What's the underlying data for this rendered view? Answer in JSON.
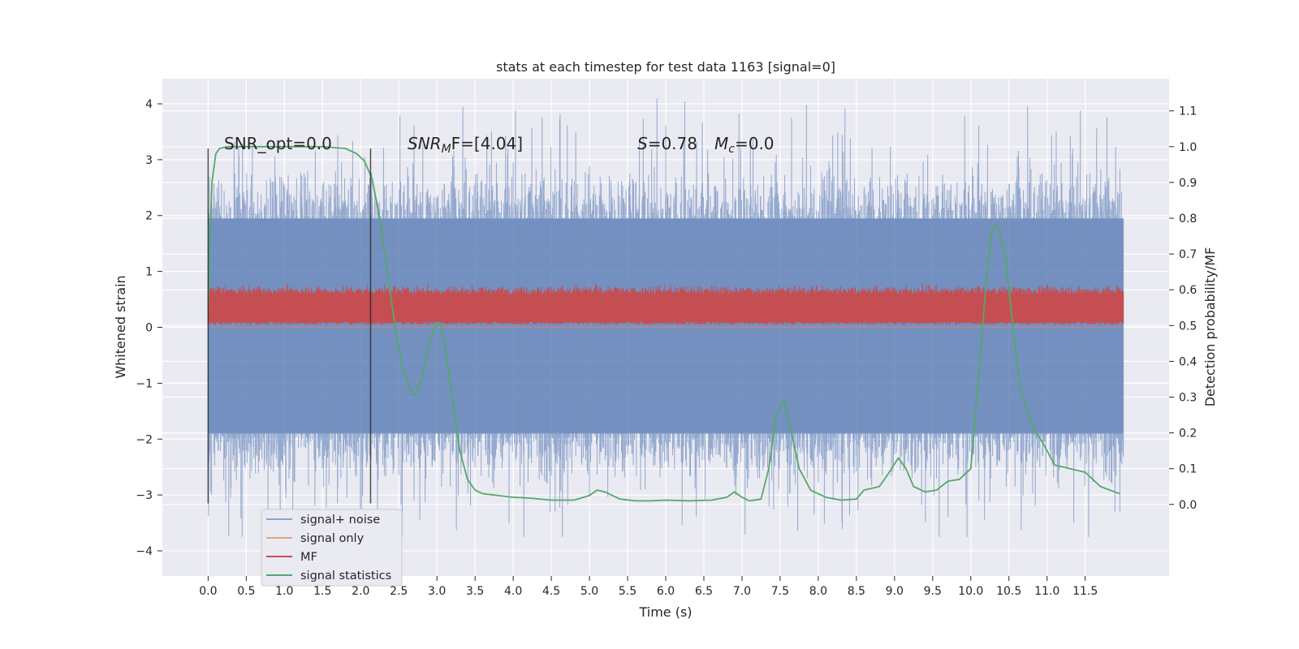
{
  "chart_data": {
    "type": "line",
    "title": "stats at each timestep for test data 1163 [signal=0]",
    "xlabel": "Time (s)",
    "ylabel_left": "Whitened strain",
    "ylabel_right": "Detection probability/MF",
    "xlim": [
      -0.6,
      12.6
    ],
    "ylim_left": [
      -4.45,
      4.45
    ],
    "ylim_right": [
      -0.2,
      1.19
    ],
    "grid": true,
    "xticks": [
      0.0,
      0.5,
      1.0,
      1.5,
      2.0,
      2.5,
      3.0,
      3.5,
      4.0,
      4.5,
      5.0,
      5.5,
      6.0,
      6.5,
      7.0,
      7.5,
      8.0,
      8.5,
      9.0,
      9.5,
      10.0,
      10.5,
      11.0,
      11.5
    ],
    "xtick_labels": [
      "0.0",
      "0.5",
      "1.0",
      "1.5",
      "2.0",
      "2.5",
      "3.0",
      "3.5",
      "4.0",
      "4.5",
      "5.0",
      "5.5",
      "6.0",
      "6.5",
      "7.0",
      "7.5",
      "8.0",
      "8.5",
      "9.0",
      "9.5",
      "10.0",
      "10.5",
      "11.0",
      "11.5"
    ],
    "yticks_left": [
      -4,
      -3,
      -2,
      -1,
      0,
      1,
      2,
      3,
      4
    ],
    "ytick_labels_left": [
      "−4",
      "−3",
      "−2",
      "−1",
      "0",
      "1",
      "2",
      "3",
      "4"
    ],
    "yticks_right": [
      0.0,
      0.1,
      0.2,
      0.3,
      0.4,
      0.5,
      0.6,
      0.7,
      0.8,
      0.9,
      1.0,
      1.1
    ],
    "ytick_labels_right": [
      "0.0",
      "0.1",
      "0.2",
      "0.3",
      "0.4",
      "0.5",
      "0.6",
      "0.7",
      "0.8",
      "0.9",
      "1.0",
      "1.1"
    ],
    "annotations": {
      "snr_opt": "SNR_opt=0.0",
      "snr_mf_main": "SNR",
      "snr_mf_sub": "M",
      "snr_mf_rest": "F=[4.04]",
      "s_main": "S",
      "s_value": "=0.78",
      "mc_main": "M",
      "mc_sub": "c",
      "mc_value": "=0.0"
    },
    "vlines": [
      {
        "x": 0.0,
        "y_range": [
          -3.15,
          3.2
        ]
      },
      {
        "x": 2.13,
        "y_range": [
          -3.15,
          3.2
        ]
      }
    ],
    "legend": {
      "placement": "lower-left",
      "entries": [
        "signal+ noise",
        "signal only",
        "MF",
        "signal statistics"
      ]
    },
    "series": [
      {
        "name": "signal+ noise",
        "axis": "left",
        "color": "#4c72b0",
        "x_range": [
          0.0,
          12.0
        ],
        "core_band": [
          -1.9,
          1.95
        ],
        "peak_range": [
          -3.75,
          4.1
        ],
        "description_of_shape": "dense white noise"
      },
      {
        "name": "signal only",
        "axis": "left",
        "color": "#dd8452",
        "x": [
          0.0,
          12.0
        ],
        "values": [
          0.0,
          0.0
        ]
      },
      {
        "name": "MF",
        "axis": "left",
        "color": "#c44e52",
        "x_range": [
          0.0,
          12.0
        ],
        "band": [
          0.05,
          0.65
        ],
        "peak_max": 0.9
      },
      {
        "name": "signal statistics",
        "axis": "right",
        "color": "#55a868",
        "x": [
          0.0,
          0.05,
          0.1,
          0.15,
          0.25,
          0.5,
          1.0,
          1.5,
          1.8,
          1.95,
          2.05,
          2.15,
          2.25,
          2.35,
          2.45,
          2.55,
          2.65,
          2.72,
          2.8,
          2.9,
          3.0,
          3.05,
          3.1,
          3.2,
          3.3,
          3.4,
          3.5,
          3.6,
          3.8,
          4.0,
          4.2,
          4.5,
          4.8,
          5.0,
          5.1,
          5.2,
          5.4,
          5.6,
          5.8,
          6.0,
          6.3,
          6.6,
          6.8,
          6.9,
          7.0,
          7.1,
          7.25,
          7.35,
          7.45,
          7.55,
          7.65,
          7.75,
          7.9,
          8.1,
          8.3,
          8.5,
          8.6,
          8.7,
          8.8,
          8.9,
          9.05,
          9.15,
          9.25,
          9.4,
          9.55,
          9.7,
          9.85,
          10.0,
          10.1,
          10.2,
          10.28,
          10.35,
          10.45,
          10.55,
          10.65,
          10.8,
          10.95,
          11.1,
          11.3,
          11.5,
          11.7,
          11.95
        ],
        "values": [
          0.55,
          0.9,
          0.98,
          0.995,
          1.0,
          1.0,
          1.0,
          1.0,
          0.995,
          0.98,
          0.96,
          0.91,
          0.8,
          0.65,
          0.5,
          0.38,
          0.32,
          0.305,
          0.35,
          0.45,
          0.51,
          0.5,
          0.45,
          0.3,
          0.15,
          0.07,
          0.04,
          0.03,
          0.025,
          0.02,
          0.018,
          0.012,
          0.012,
          0.025,
          0.04,
          0.035,
          0.015,
          0.01,
          0.01,
          0.012,
          0.01,
          0.012,
          0.02,
          0.035,
          0.02,
          0.01,
          0.015,
          0.1,
          0.25,
          0.29,
          0.2,
          0.1,
          0.04,
          0.02,
          0.012,
          0.015,
          0.04,
          0.045,
          0.05,
          0.08,
          0.13,
          0.1,
          0.05,
          0.035,
          0.04,
          0.065,
          0.07,
          0.1,
          0.35,
          0.62,
          0.77,
          0.78,
          0.7,
          0.5,
          0.32,
          0.22,
          0.17,
          0.11,
          0.1,
          0.09,
          0.05,
          0.03
        ]
      }
    ]
  }
}
